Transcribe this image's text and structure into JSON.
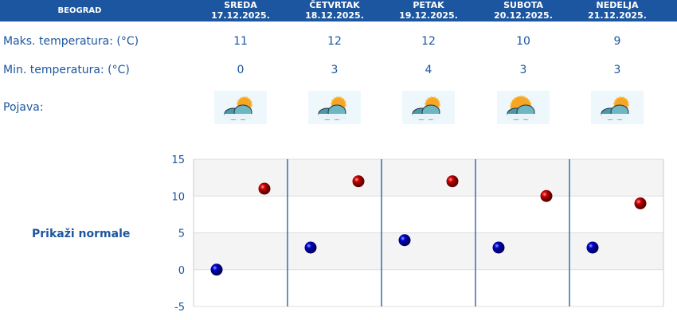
{
  "header": {
    "city": "BEOGRAD"
  },
  "days": [
    {
      "name": "SREDA",
      "date": "17.12.2025.",
      "max": "11",
      "min": "0",
      "icon": "sun-cloud-icon"
    },
    {
      "name": "ČETVRTAK",
      "date": "18.12.2025.",
      "max": "12",
      "min": "3",
      "icon": "cloud-sun-icon"
    },
    {
      "name": "PETAK",
      "date": "19.12.2025.",
      "max": "12",
      "min": "4",
      "icon": "sun-cloud-icon"
    },
    {
      "name": "SUBOTA",
      "date": "20.12.2025.",
      "max": "10",
      "min": "3",
      "icon": "sunny-cloud-icon"
    },
    {
      "name": "NEDELJA",
      "date": "21.12.2025.",
      "max": "9",
      "min": "3",
      "icon": "sun-cloud-icon"
    }
  ],
  "labels": {
    "max": "Maks. temperatura: (°C)",
    "min": "Min. temperatura: (°C)",
    "phenomenon": "Pojava:",
    "normals": "Prikaži normale"
  },
  "chart_data": {
    "type": "scatter",
    "ylim": [
      -5,
      15
    ],
    "yticks": [
      "15",
      "10",
      "5",
      "0",
      "-5"
    ],
    "categories": [
      "17.12.2025.",
      "18.12.2025.",
      "19.12.2025.",
      "20.12.2025.",
      "21.12.2025."
    ],
    "series": [
      {
        "values": [
          0,
          3,
          4,
          3,
          3
        ],
        "color": "#0000cc"
      },
      {
        "values": [
          11,
          12,
          12,
          10,
          9
        ],
        "color": "#cc0000"
      }
    ],
    "grid": true
  }
}
